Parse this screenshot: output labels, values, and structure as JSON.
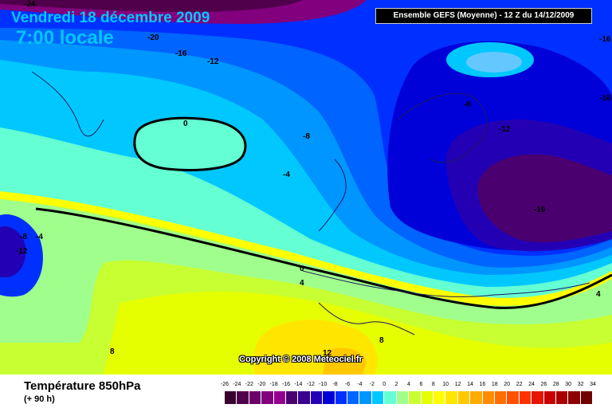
{
  "header": {
    "date": "Vendredi 18 décembre 2009",
    "time": "7:00 locale"
  },
  "run_info": "Ensemble GEFS (Moyenne)  - 12 Z du 14/12/2009",
  "copyright": "Copyright © 2008 Meteociel.fr",
  "footer": {
    "parameter": "Température 850hPa",
    "lead": "(+ 90 h)"
  },
  "contour_labels": [
    "-24",
    "-20",
    "-16",
    "-12",
    "0",
    "-8",
    "-4",
    "-8",
    "-4",
    "-12",
    "0",
    "4",
    "8",
    "8",
    "12",
    "-8",
    "-12",
    "-16",
    "-16",
    "-16",
    "4"
  ],
  "legend": {
    "labels": [
      "-26",
      "-24",
      "-22",
      "-20",
      "-18",
      "-16",
      "-14",
      "-12",
      "-10",
      "-8",
      "-6",
      "-4",
      "-2",
      "0",
      "2",
      "4",
      "6",
      "8",
      "10",
      "12",
      "14",
      "16",
      "18",
      "20",
      "22",
      "24",
      "26",
      "28",
      "30",
      "32",
      "34"
    ],
    "colors": [
      "#3a0030",
      "#50004a",
      "#6a0068",
      "#82007e",
      "#960090",
      "#4a006e",
      "#3a0090",
      "#2400b4",
      "#0000d8",
      "#0030ff",
      "#0064ff",
      "#0096ff",
      "#00c8ff",
      "#64ffd2",
      "#a0ff8c",
      "#c8ff32",
      "#e6ff00",
      "#ffff00",
      "#ffe600",
      "#ffc800",
      "#ffaa00",
      "#ff8c00",
      "#ff6e00",
      "#ff5000",
      "#ff3200",
      "#e61400",
      "#c80000",
      "#aa0000",
      "#8c0000",
      "#6e0000"
    ]
  }
}
